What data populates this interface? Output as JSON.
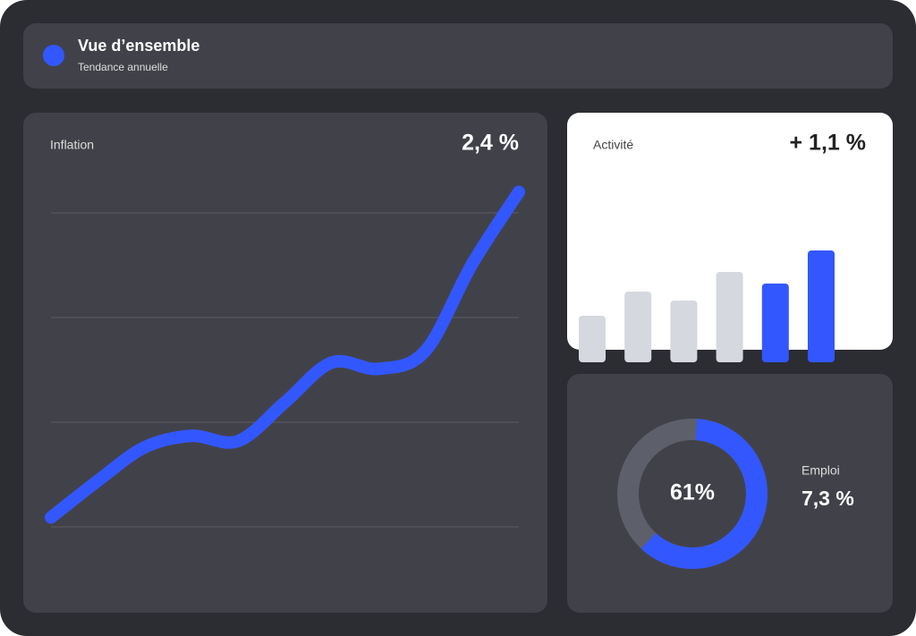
{
  "header": {
    "title": "Vue d’ensemble",
    "subtitle": "Tendance annuelle"
  },
  "chart_data": [
    {
      "type": "line",
      "title": "Inflation",
      "headline": "2,4 %",
      "color": "#3357ff",
      "values": [
        0.09,
        0.44,
        0.76,
        0.87,
        0.82,
        1.19,
        1.57,
        1.51,
        1.68,
        2.51,
        3.2
      ],
      "ylim": [
        0,
        4
      ],
      "yticks": [
        0,
        1,
        2,
        3
      ],
      "grid": true
    },
    {
      "type": "bar",
      "title": "Activité",
      "headline": "+ 1,1 %",
      "values": [
        52,
        79,
        69,
        101,
        88,
        125
      ],
      "colors": [
        "#d5d8de",
        "#d5d8de",
        "#d5d8de",
        "#d5d8de",
        "#3357ff",
        "#3357ff"
      ],
      "ylim": [
        0,
        130
      ]
    },
    {
      "type": "donut",
      "title": "Emploi",
      "headline": "7,3 %",
      "values": [
        61
      ],
      "value_labels": [
        "61%"
      ],
      "ylim": [
        0,
        100
      ],
      "color": "#3357ff",
      "track_color": "#5d606a"
    }
  ]
}
